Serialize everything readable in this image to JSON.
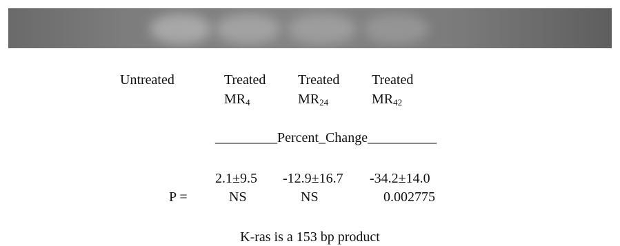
{
  "lanes": [
    {
      "label": "Untreated"
    },
    {
      "label": "Treated",
      "sub": "MR",
      "subscript": "4"
    },
    {
      "label": "Treated",
      "sub": "MR",
      "subscript": "24"
    },
    {
      "label": "Treated",
      "sub": "MR",
      "subscript": "42"
    }
  ],
  "header": "_________Percent_Change__________",
  "changes": [
    "2.1±9.5",
    "-12.9±16.7",
    "-34.2±14.0"
  ],
  "p_row": {
    "label": "P =",
    "values": [
      "NS",
      "NS",
      "0.002775"
    ]
  },
  "footer": "K-ras is a 153 bp product"
}
